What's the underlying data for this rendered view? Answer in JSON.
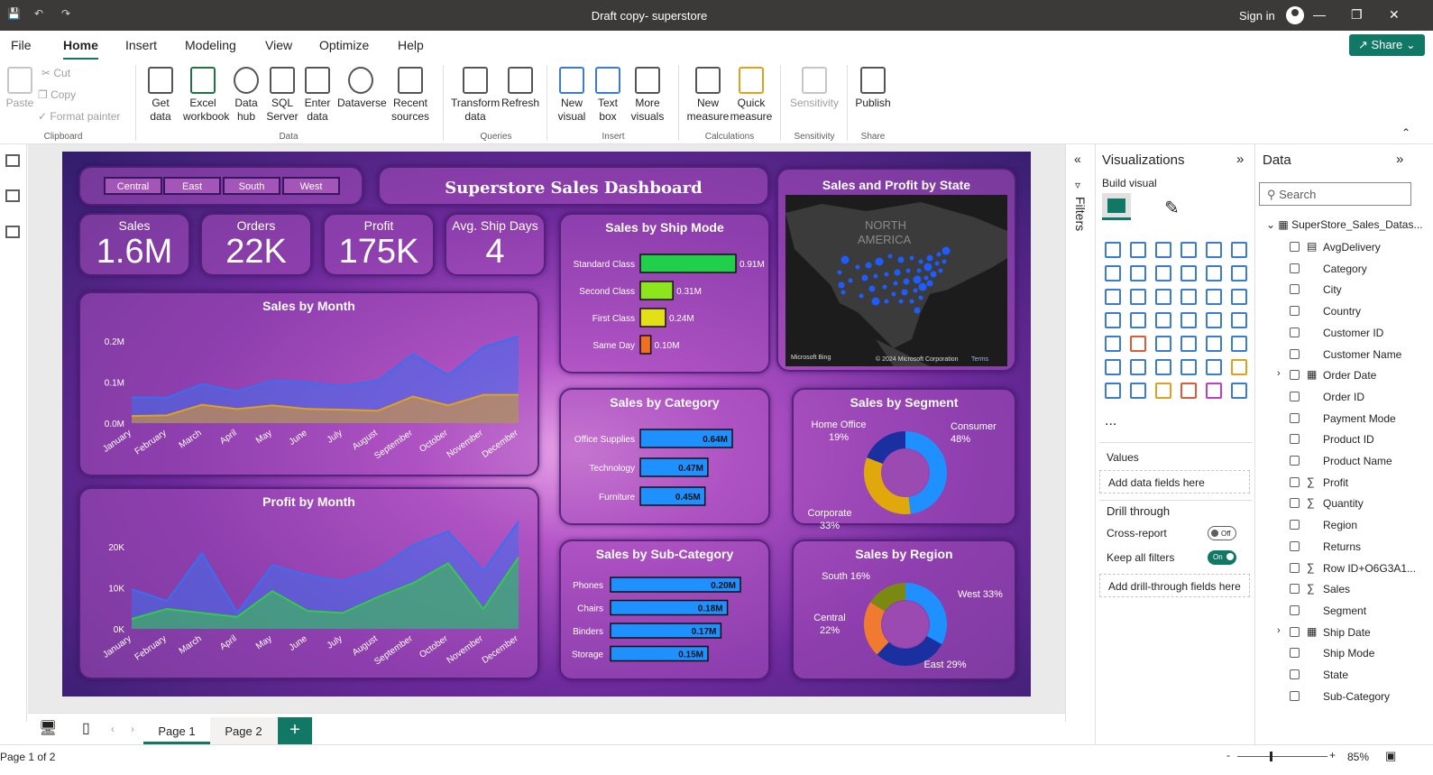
{
  "app": {
    "title": "Draft copy- superstore",
    "signin": "Sign in"
  },
  "menu": [
    "File",
    "Home",
    "Insert",
    "Modeling",
    "View",
    "Optimize",
    "Help"
  ],
  "share_label": "Share",
  "ribbon": {
    "clipboard": {
      "paste": "Paste",
      "cut": "Cut",
      "copy": "Copy",
      "format_painter": "Format painter",
      "group": "Clipboard"
    },
    "data_buttons": [
      "Get data",
      "Excel workbook",
      "Data hub",
      "SQL Server",
      "Enter data",
      "Dataverse",
      "Recent sources"
    ],
    "data_group": "Data",
    "queries_buttons": [
      "Transform data",
      "Refresh"
    ],
    "queries_group": "Queries",
    "insert_buttons": [
      "New visual",
      "Text box",
      "More visuals"
    ],
    "insert_group": "Insert",
    "calc_buttons": [
      "New measure",
      "Quick measure"
    ],
    "calc_group": "Calculations",
    "sens_buttons": [
      "Sensitivity"
    ],
    "sens_group": "Sensitivity",
    "share_buttons": [
      "Publish"
    ],
    "share_group": "Share"
  },
  "report": {
    "slicer": [
      "Central",
      "East",
      "South",
      "West"
    ],
    "title": "Superstore Sales Dashboard",
    "kpis": [
      {
        "label": "Sales",
        "value": "1.6M"
      },
      {
        "label": "Orders",
        "value": "22K"
      },
      {
        "label": "Profit",
        "value": "175K"
      },
      {
        "label": "Avg. Ship Days",
        "value": "4"
      }
    ],
    "map": {
      "title": "Sales and Profit by State",
      "label": "NORTH AMERICA",
      "credit": "Microsoft Bing",
      "copyright": "© 2024 Microsoft Corporation",
      "terms": "Terms"
    },
    "ship_mode_title": "Sales by Ship Mode",
    "category_title": "Sales by Category",
    "segment_title": "Sales by Segment",
    "subcat_title": "Sales by Sub-Category",
    "region_title": "Sales by Region",
    "sales_month_title": "Sales by Month",
    "profit_month_title": "Profit by Month"
  },
  "chart_data": [
    {
      "type": "area",
      "title": "Sales by Month",
      "categories": [
        "January",
        "February",
        "March",
        "April",
        "May",
        "June",
        "July",
        "August",
        "September",
        "October",
        "November",
        "December"
      ],
      "ytick_labels": [
        "0.0M",
        "0.1M",
        "0.2M"
      ],
      "ylim": [
        0,
        0.26
      ],
      "series": [
        {
          "values": [
            0.073,
            0.072,
            0.11,
            0.09,
            0.12,
            0.115,
            0.105,
            0.12,
            0.195,
            0.135,
            0.215,
            0.245
          ],
          "color": "#3a6ff0"
        },
        {
          "values": [
            0.02,
            0.022,
            0.052,
            0.04,
            0.05,
            0.04,
            0.038,
            0.035,
            0.075,
            0.05,
            0.08,
            0.08
          ],
          "color": "#e0a020"
        }
      ]
    },
    {
      "type": "area",
      "title": "Profit by Month",
      "categories": [
        "January",
        "February",
        "March",
        "April",
        "May",
        "June",
        "July",
        "August",
        "September",
        "October",
        "November",
        "December"
      ],
      "ytick_labels": [
        "0K",
        "10K",
        "20K"
      ],
      "ylim": [
        0,
        27000
      ],
      "series": [
        {
          "values": [
            10000,
            7000,
            19000,
            4000,
            16000,
            13500,
            12000,
            15000,
            21000,
            24500,
            14500,
            27000
          ],
          "color": "#3a6ff0"
        },
        {
          "values": [
            2500,
            5000,
            4000,
            3000,
            9500,
            4500,
            4000,
            8000,
            11500,
            16500,
            5000,
            18000
          ],
          "color": "#33cc44"
        }
      ]
    },
    {
      "type": "bar",
      "title": "Sales by Ship Mode",
      "categories": [
        "Standard Class",
        "Second Class",
        "First Class",
        "Same Day"
      ],
      "values": [
        0.91,
        0.31,
        0.24,
        0.1
      ],
      "labels": [
        "0.91M",
        "0.31M",
        "0.24M",
        "0.10M"
      ],
      "colors": [
        "#21d04a",
        "#8de61c",
        "#e4e018",
        "#f07020"
      ]
    },
    {
      "type": "bar",
      "title": "Sales by Category",
      "categories": [
        "Office Supplies",
        "Technology",
        "Furniture"
      ],
      "values": [
        0.64,
        0.47,
        0.45
      ],
      "labels": [
        "0.64M",
        "0.47M",
        "0.45M"
      ],
      "colors": [
        "#1e90ff",
        "#1e90ff",
        "#1e90ff"
      ]
    },
    {
      "type": "bar",
      "title": "Sales by Sub-Category",
      "categories": [
        "Phones",
        "Chairs",
        "Binders",
        "Storage"
      ],
      "values": [
        0.2,
        0.18,
        0.17,
        0.15
      ],
      "labels": [
        "0.20M",
        "0.18M",
        "0.17M",
        "0.15M"
      ],
      "colors": [
        "#1e90ff",
        "#1e90ff",
        "#1e90ff",
        "#1e90ff"
      ]
    },
    {
      "type": "pie",
      "title": "Sales by Segment",
      "slices": [
        {
          "name": "Consumer",
          "value": 48,
          "label": "Consumer\n48%",
          "color": "#1e90ff"
        },
        {
          "name": "Corporate",
          "value": 33,
          "label": "Corporate\n33%",
          "color": "#e0a80a"
        },
        {
          "name": "Home Office",
          "value": 19,
          "label": "Home Office\n19%",
          "color": "#1a2fa0"
        }
      ]
    },
    {
      "type": "pie",
      "title": "Sales by Region",
      "slices": [
        {
          "name": "West",
          "value": 33,
          "label": "West 33%",
          "color": "#1e90ff"
        },
        {
          "name": "East",
          "value": 29,
          "label": "East 29%",
          "color": "#1a2fa0"
        },
        {
          "name": "Central",
          "value": 22,
          "label": "Central\n22%",
          "color": "#f07a30"
        },
        {
          "name": "South",
          "value": 16,
          "label": "South 16%",
          "color": "#7a8a10"
        }
      ]
    }
  ],
  "filters_label": "Filters",
  "viz": {
    "title": "Visualizations",
    "build": "Build visual",
    "values": "Values",
    "add_fields": "Add data fields here",
    "drill": "Drill through",
    "cross": "Cross-report",
    "cross_state": "Off",
    "keep": "Keep all filters",
    "keep_state": "On",
    "add_drill": "Add drill-through fields here",
    "more": "...",
    "icon_colors": [
      "#3a7bd5",
      "#3a7bd5",
      "#3a7bd5",
      "#3a7bd5",
      "#3a7bd5",
      "#3a7bd5",
      "#3a7bd5",
      "#3a7bd5",
      "#3a7bd5",
      "#3a7bd5",
      "#3a7bd5",
      "#3a7bd5",
      "#3a7bd5",
      "#3a7bd5",
      "#3a7bd5",
      "#3a7bd5",
      "#3a7bd5",
      "#3a7bd5",
      "#3a7bd5",
      "#3a7bd5",
      "#3a7bd5",
      "#3a7bd5",
      "#3a7bd5",
      "#3a7bd5",
      "#3a7bd5",
      "#e05a3a",
      "#3a7bd5",
      "#3a7bd5",
      "#3a7bd5",
      "#3a7bd5",
      "#3a7bd5",
      "#3a7bd5",
      "#3a7bd5",
      "#3a7bd5",
      "#3a7bd5",
      "#e0a020",
      "#3a7bd5",
      "#3a7bd5",
      "#e0a020",
      "#e05a3a",
      "#c040c0",
      "#3a7bd5"
    ]
  },
  "data_panel": {
    "title": "Data",
    "search": "Search",
    "table": "SuperStore_Sales_Datas...",
    "fields": [
      {
        "name": "AvgDelivery",
        "icon": "calc"
      },
      {
        "name": "Category",
        "icon": ""
      },
      {
        "name": "City",
        "icon": ""
      },
      {
        "name": "Country",
        "icon": ""
      },
      {
        "name": "Customer ID",
        "icon": ""
      },
      {
        "name": "Customer Name",
        "icon": ""
      },
      {
        "name": "Order Date",
        "icon": "cal"
      },
      {
        "name": "Order ID",
        "icon": ""
      },
      {
        "name": "Payment Mode",
        "icon": ""
      },
      {
        "name": "Product ID",
        "icon": ""
      },
      {
        "name": "Product Name",
        "icon": ""
      },
      {
        "name": "Profit",
        "icon": "sum"
      },
      {
        "name": "Quantity",
        "icon": "sum"
      },
      {
        "name": "Region",
        "icon": ""
      },
      {
        "name": "Returns",
        "icon": ""
      },
      {
        "name": "Row ID+O6G3A1...",
        "icon": "sum"
      },
      {
        "name": "Sales",
        "icon": "sum"
      },
      {
        "name": "Segment",
        "icon": ""
      },
      {
        "name": "Ship Date",
        "icon": "cal"
      },
      {
        "name": "Ship Mode",
        "icon": ""
      },
      {
        "name": "State",
        "icon": ""
      },
      {
        "name": "Sub-Category",
        "icon": ""
      }
    ]
  },
  "pages": [
    "Page 1",
    "Page 2"
  ],
  "status": {
    "page": "Page 1 of 2",
    "zoom": "85%"
  }
}
